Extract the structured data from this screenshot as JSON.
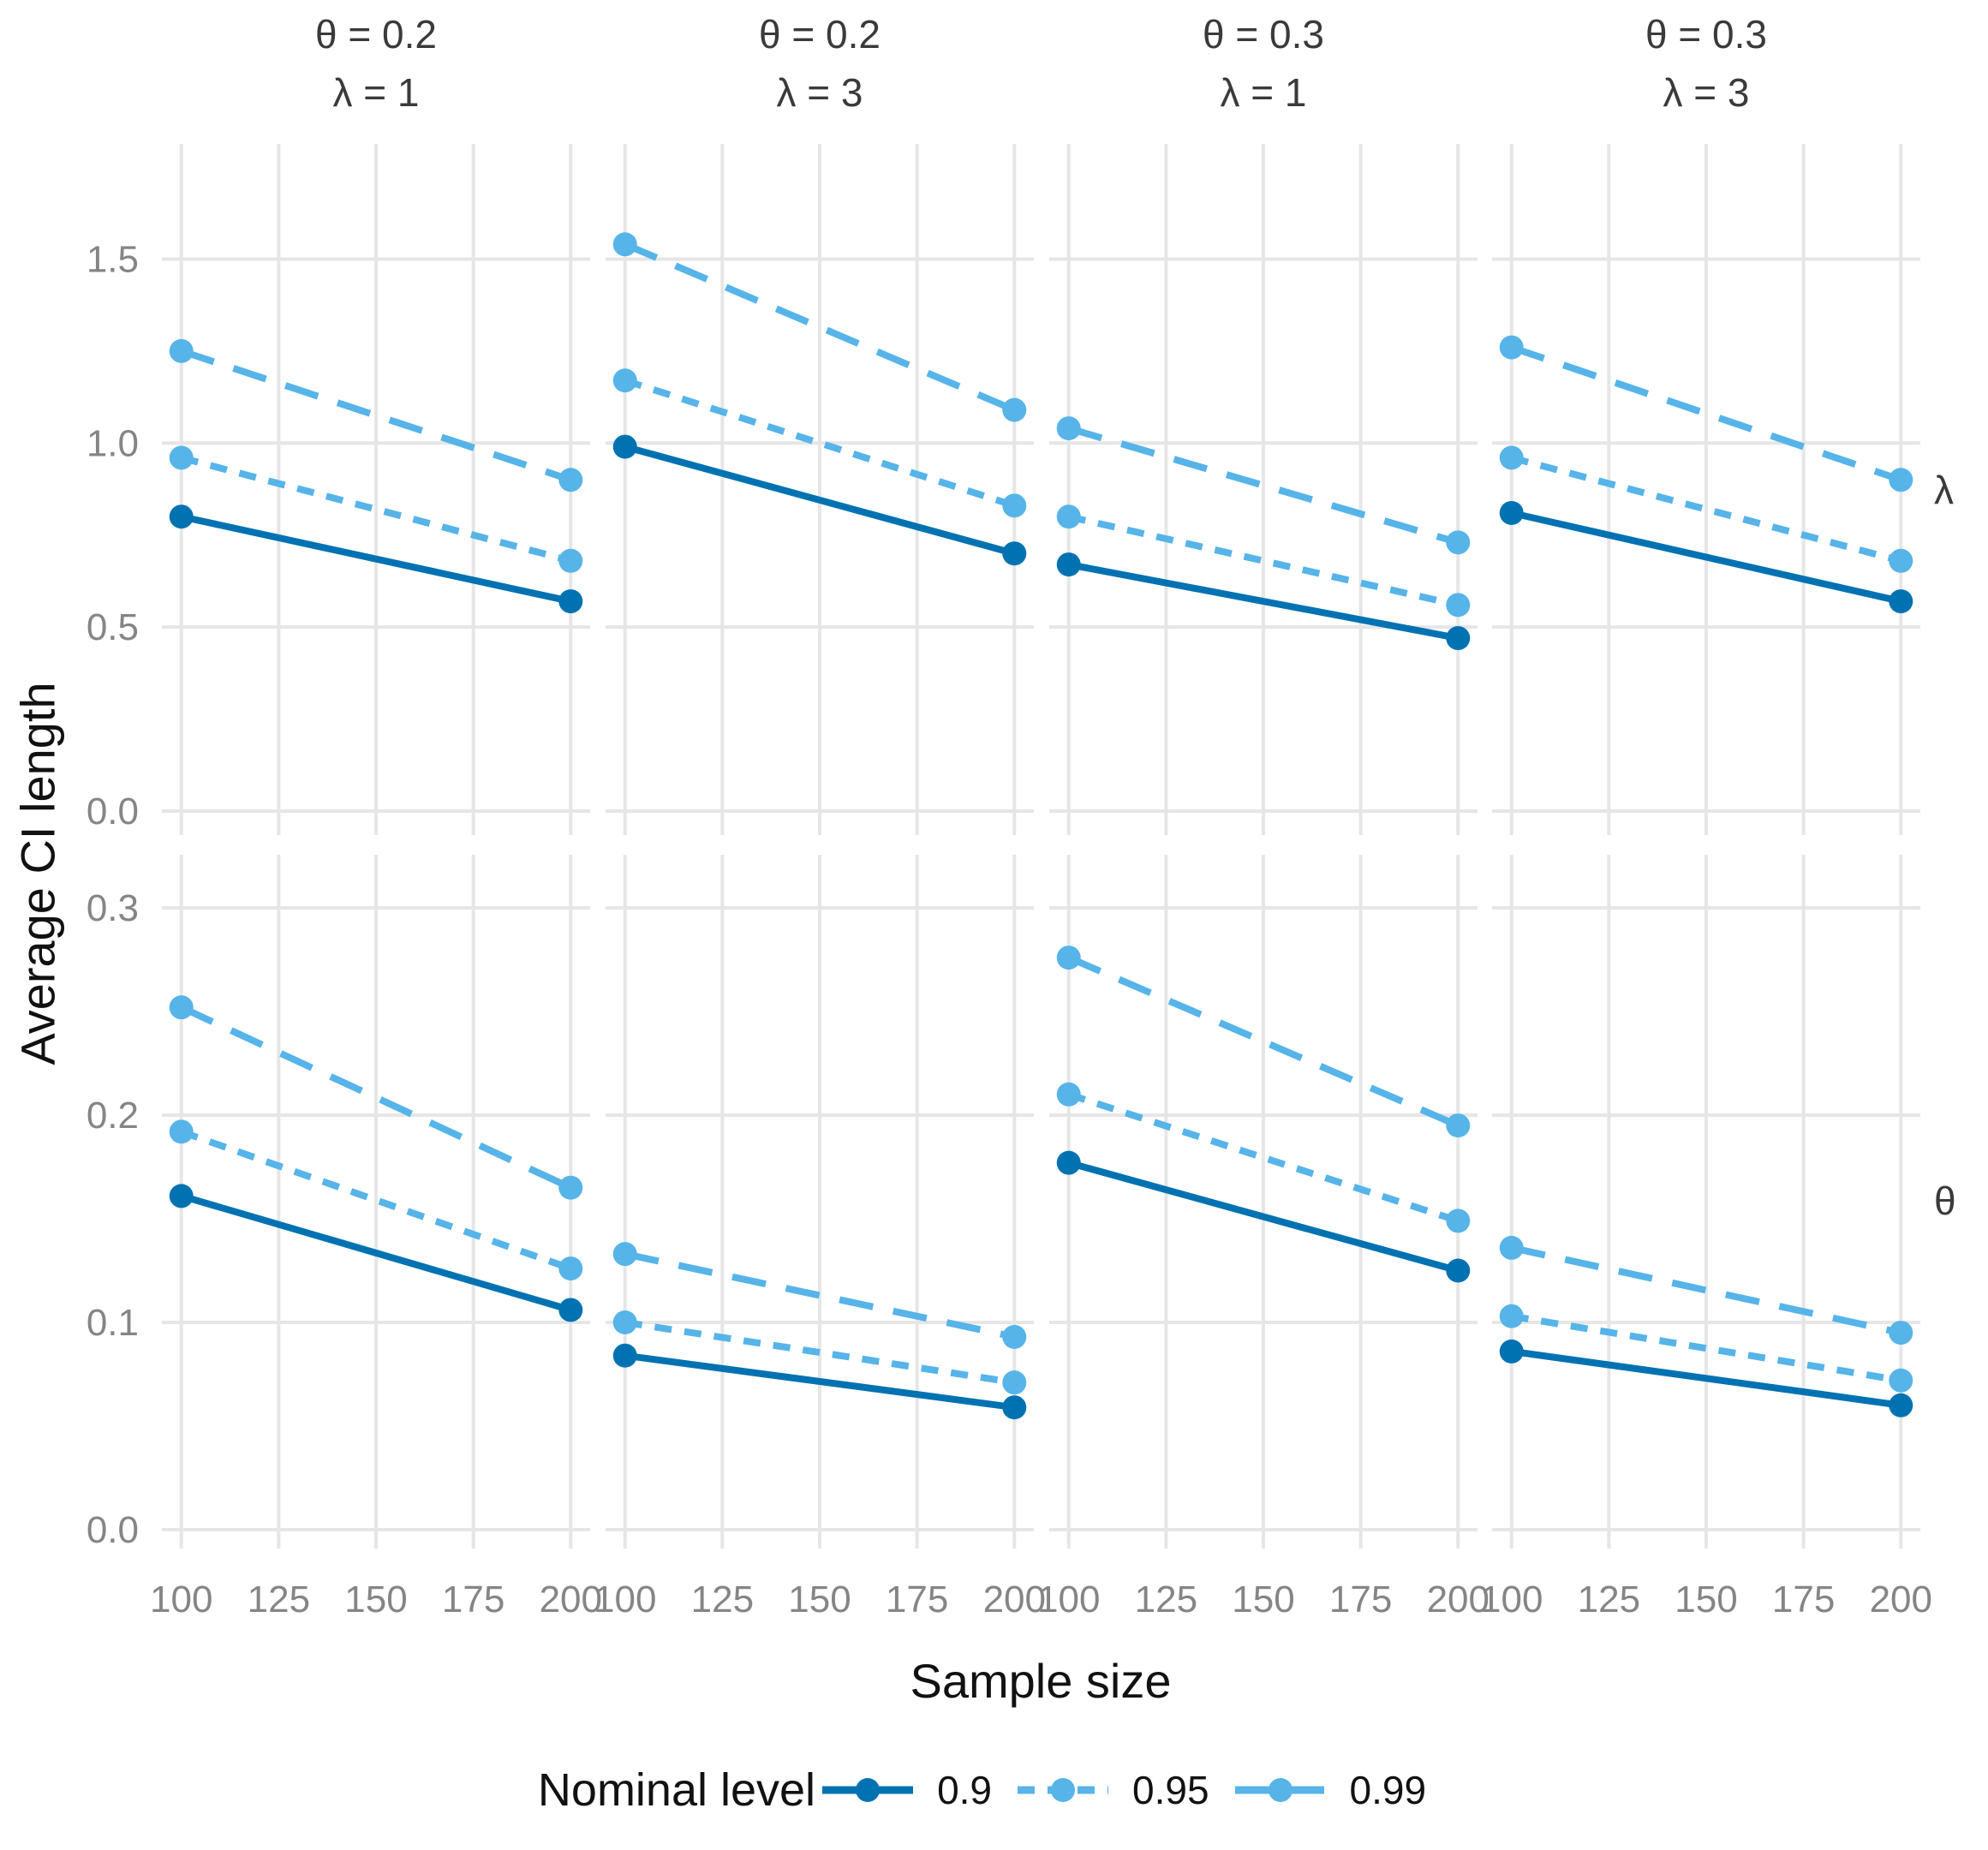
{
  "colors": {
    "background": "#ffffff",
    "grid": "#e6e6e6",
    "tick_text": "#858585",
    "strip_text": "#3a3a3a",
    "axis_title_text": "#111111",
    "level_09": "#0072B2",
    "level_095": "#56B4E9",
    "level_099": "#56B4E9"
  },
  "axes": {
    "x_title": "Sample size",
    "y_title": "Average CI length",
    "x_tick_values": [
      100,
      125,
      150,
      175,
      200
    ],
    "x_tick_labels": [
      "100",
      "125",
      "150",
      "175",
      "200"
    ]
  },
  "legend": {
    "title": "Nominal level",
    "items": [
      {
        "label": "0.9",
        "color": "#0072B2",
        "dash": ""
      },
      {
        "label": "0.95",
        "color": "#56B4E9",
        "dash": "20 15"
      },
      {
        "label": "0.99",
        "color": "#56B4E9",
        "dash": "40 24"
      }
    ]
  },
  "chart_data": {
    "type": "line",
    "title": "",
    "xlabel": "Sample size",
    "ylabel": "Average CI length",
    "x": [
      100,
      200
    ],
    "xlim": [
      95,
      205
    ],
    "grid": "major-only",
    "legend_position": "bottom",
    "series_levels": [
      "0.9",
      "0.95",
      "0.99"
    ],
    "facet_columns": [
      {
        "line1": "θ = 0.2",
        "line2": "λ = 1"
      },
      {
        "line1": "θ = 0.2",
        "line2": "λ = 3"
      },
      {
        "line1": "θ = 0.3",
        "line2": "λ = 1"
      },
      {
        "line1": "θ = 0.3",
        "line2": "λ = 3"
      }
    ],
    "facet_rows": [
      {
        "strip": "λ",
        "ylim": [
          0,
          1.81
        ],
        "y_ticks": [
          0,
          0.5,
          1.0,
          1.5
        ],
        "y_tick_labels": [
          "0.0",
          "0.5",
          "1.0",
          "1.5"
        ]
      },
      {
        "strip": "θ",
        "ylim": [
          0,
          0.33
        ],
        "y_ticks": [
          0,
          0.1,
          0.2,
          0.3
        ],
        "y_tick_labels": [
          "0.0",
          "0.1",
          "0.2",
          "0.3"
        ]
      }
    ],
    "panels": [
      {
        "row": 0,
        "col": 0,
        "series": [
          {
            "level": "0.9",
            "values": [
              0.8,
              0.57
            ]
          },
          {
            "level": "0.95",
            "values": [
              0.96,
              0.68
            ]
          },
          {
            "level": "0.99",
            "values": [
              1.25,
              0.9
            ]
          }
        ]
      },
      {
        "row": 0,
        "col": 1,
        "series": [
          {
            "level": "0.9",
            "values": [
              0.99,
              0.7
            ]
          },
          {
            "level": "0.95",
            "values": [
              1.17,
              0.83
            ]
          },
          {
            "level": "0.99",
            "values": [
              1.54,
              1.09
            ]
          }
        ]
      },
      {
        "row": 0,
        "col": 2,
        "series": [
          {
            "level": "0.9",
            "values": [
              0.67,
              0.47
            ]
          },
          {
            "level": "0.95",
            "values": [
              0.8,
              0.56
            ]
          },
          {
            "level": "0.99",
            "values": [
              1.04,
              0.73
            ]
          }
        ]
      },
      {
        "row": 0,
        "col": 3,
        "series": [
          {
            "level": "0.9",
            "values": [
              0.81,
              0.57
            ]
          },
          {
            "level": "0.95",
            "values": [
              0.96,
              0.68
            ]
          },
          {
            "level": "0.99",
            "values": [
              1.26,
              0.9
            ]
          }
        ]
      },
      {
        "row": 1,
        "col": 0,
        "series": [
          {
            "level": "0.9",
            "values": [
              0.161,
              0.106
            ]
          },
          {
            "level": "0.95",
            "values": [
              0.192,
              0.126
            ]
          },
          {
            "level": "0.99",
            "values": [
              0.252,
              0.165
            ]
          }
        ]
      },
      {
        "row": 1,
        "col": 1,
        "series": [
          {
            "level": "0.9",
            "values": [
              0.084,
              0.059
            ]
          },
          {
            "level": "0.95",
            "values": [
              0.1,
              0.071
            ]
          },
          {
            "level": "0.99",
            "values": [
              0.133,
              0.093
            ]
          }
        ]
      },
      {
        "row": 1,
        "col": 2,
        "series": [
          {
            "level": "0.9",
            "values": [
              0.177,
              0.125
            ]
          },
          {
            "level": "0.95",
            "values": [
              0.21,
              0.149
            ]
          },
          {
            "level": "0.99",
            "values": [
              0.276,
              0.195
            ]
          }
        ]
      },
      {
        "row": 1,
        "col": 3,
        "series": [
          {
            "level": "0.9",
            "values": [
              0.086,
              0.06
            ]
          },
          {
            "level": "0.95",
            "values": [
              0.103,
              0.072
            ]
          },
          {
            "level": "0.99",
            "values": [
              0.136,
              0.095
            ]
          }
        ]
      }
    ]
  }
}
